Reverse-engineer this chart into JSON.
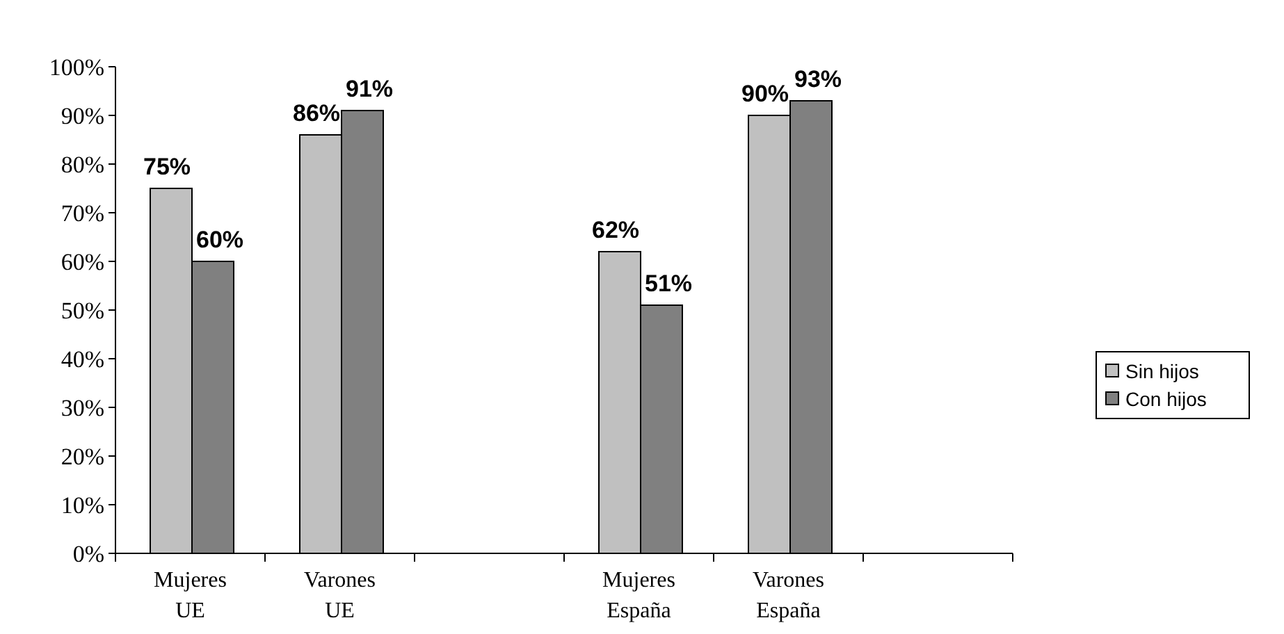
{
  "chart_data": {
    "type": "bar",
    "categories": [
      "Mujeres UE",
      "Varones UE",
      null,
      "Mujeres España",
      "Varones España",
      null
    ],
    "series": [
      {
        "name": "Sin hijos",
        "color": "#c0c0c0",
        "values": [
          75,
          86,
          null,
          62,
          90,
          null
        ],
        "value_labels": [
          "75%",
          "86%",
          null,
          "62%",
          "90%",
          null
        ]
      },
      {
        "name": "Con hijos",
        "color": "#808080",
        "values": [
          60,
          91,
          null,
          51,
          93,
          null
        ],
        "value_labels": [
          "60%",
          "91%",
          null,
          "51%",
          "93%",
          null
        ]
      }
    ],
    "ylim": [
      0,
      100
    ],
    "yticks": [
      {
        "value": 0,
        "label": "0%"
      },
      {
        "value": 10,
        "label": "10%"
      },
      {
        "value": 20,
        "label": "20%"
      },
      {
        "value": 30,
        "label": "30%"
      },
      {
        "value": 40,
        "label": "40%"
      },
      {
        "value": 50,
        "label": "50%"
      },
      {
        "value": 60,
        "label": "60%"
      },
      {
        "value": 70,
        "label": "70%"
      },
      {
        "value": 80,
        "label": "80%"
      },
      {
        "value": 90,
        "label": "90%"
      },
      {
        "value": 100,
        "label": "100%"
      }
    ],
    "grid": false,
    "legend": "right"
  }
}
